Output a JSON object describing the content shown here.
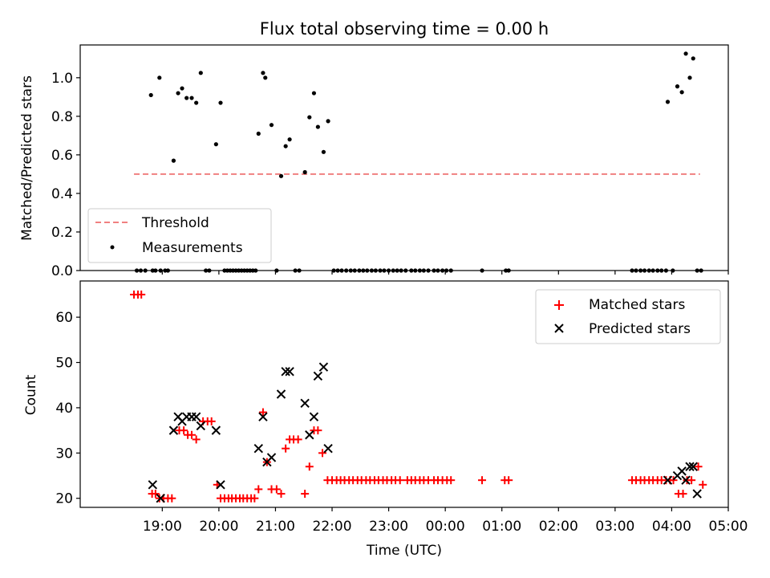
{
  "chart_data": [
    {
      "type": "scatter",
      "title": "Flux total observing time = 0.00 h",
      "xlabel": "",
      "ylabel": "Matched/Predicted stars",
      "ylim": [
        0,
        1.17
      ],
      "xlim": [
        17.55,
        29.0
      ],
      "yticks": [
        0.0,
        0.2,
        0.4,
        0.6,
        0.8,
        1.0
      ],
      "ytick_labels": [
        "0.0",
        "0.2",
        "0.4",
        "0.6",
        "0.8",
        "1.0"
      ],
      "legend_position": "lower-left",
      "threshold": {
        "name": "Threshold",
        "value": 0.5,
        "x_range": [
          18.5,
          28.5
        ],
        "color": "#f08080"
      },
      "series": [
        {
          "name": "Measurements",
          "color": "#000000",
          "marker": "dot",
          "x": [
            18.55,
            18.62,
            18.7,
            18.8,
            18.88,
            18.95,
            19.05,
            19.1,
            18.83,
            18.97,
            19.2,
            19.28,
            19.35,
            19.43,
            19.52,
            19.6,
            19.68,
            19.77,
            19.83,
            19.95,
            20.03,
            20.1,
            20.15,
            20.2,
            20.25,
            20.3,
            20.35,
            20.4,
            20.45,
            20.5,
            20.55,
            20.6,
            20.65,
            20.7,
            20.78,
            20.82,
            20.93,
            21.02,
            21.1,
            21.18,
            21.25,
            21.35,
            21.42,
            21.52,
            21.6,
            21.68,
            21.75,
            21.85,
            21.93,
            22.03,
            22.1,
            22.17,
            22.25,
            22.33,
            22.4,
            22.48,
            22.55,
            22.62,
            22.7,
            22.77,
            22.85,
            22.92,
            23.0,
            23.08,
            23.15,
            23.22,
            23.3,
            23.4,
            23.47,
            23.55,
            23.62,
            23.7,
            23.8,
            23.87,
            23.95,
            24.02,
            24.1,
            24.65,
            25.07,
            25.12,
            27.3,
            27.37,
            27.45,
            27.52,
            27.6,
            27.67,
            27.75,
            27.82,
            27.9,
            28.02,
            27.93,
            28.1,
            28.18,
            28.25,
            28.32,
            28.38,
            28.45,
            28.52
          ],
          "y": [
            0,
            0,
            0,
            0.91,
            0,
            1.0,
            0,
            0,
            0,
            0,
            0.57,
            0.92,
            0.945,
            0.895,
            0.895,
            0.87,
            1.025,
            0,
            0,
            0.655,
            0.87,
            0,
            0,
            0,
            0,
            0,
            0,
            0,
            0,
            0,
            0,
            0,
            0,
            0.71,
            1.025,
            1.0,
            0.755,
            0,
            0.49,
            0.645,
            0.68,
            0,
            0,
            0.51,
            0.795,
            0.92,
            0.745,
            0.615,
            0.775,
            0,
            0,
            0,
            0,
            0,
            0,
            0,
            0,
            0,
            0,
            0,
            0,
            0,
            0,
            0,
            0,
            0,
            0,
            0,
            0,
            0,
            0,
            0,
            0,
            0,
            0,
            0,
            0,
            0,
            0,
            0,
            0,
            0,
            0,
            0,
            0,
            0,
            0,
            0,
            0,
            0,
            0.875,
            0.955,
            0.925,
            1.125,
            1.0,
            1.1,
            0,
            0
          ]
        }
      ]
    },
    {
      "type": "scatter",
      "title": "",
      "xlabel": "Time (UTC)",
      "ylabel": "Count",
      "ylim": [
        18,
        68
      ],
      "xlim": [
        17.55,
        29.0
      ],
      "yticks": [
        20,
        30,
        40,
        50,
        60
      ],
      "ytick_labels": [
        "20",
        "30",
        "40",
        "50",
        "60"
      ],
      "xticks": [
        19,
        20,
        21,
        22,
        23,
        24,
        25,
        26,
        27,
        28,
        29
      ],
      "xtick_labels": [
        "19:00",
        "20:00",
        "21:00",
        "22:00",
        "23:00",
        "00:00",
        "01:00",
        "02:00",
        "03:00",
        "04:00",
        "05:00"
      ],
      "legend_position": "upper-right",
      "series": [
        {
          "name": "Matched stars",
          "color": "#ff0000",
          "marker": "plus",
          "x": [
            18.5,
            18.57,
            18.63,
            18.82,
            18.88,
            18.95,
            19.02,
            19.1,
            19.17,
            19.3,
            19.38,
            19.45,
            19.52,
            19.6,
            19.72,
            19.8,
            19.87,
            19.97,
            20.03,
            20.1,
            20.17,
            20.23,
            20.3,
            20.37,
            20.43,
            20.5,
            20.57,
            20.63,
            20.7,
            20.78,
            20.85,
            20.93,
            21.02,
            21.1,
            21.18,
            21.25,
            21.32,
            21.4,
            21.52,
            21.6,
            21.68,
            21.75,
            21.83,
            21.92,
            22.0,
            22.08,
            22.15,
            22.22,
            22.3,
            22.37,
            22.45,
            22.52,
            22.6,
            22.67,
            22.75,
            22.82,
            22.9,
            22.97,
            23.05,
            23.12,
            23.2,
            23.33,
            23.4,
            23.47,
            23.55,
            23.62,
            23.7,
            23.8,
            23.87,
            23.95,
            24.03,
            24.1,
            24.65,
            25.05,
            25.12,
            27.3,
            27.37,
            27.45,
            27.52,
            27.6,
            27.67,
            27.75,
            27.82,
            27.9,
            27.97,
            28.03,
            28.12,
            28.2,
            28.27,
            28.35,
            28.47,
            28.55
          ],
          "y": [
            65,
            65,
            65,
            21,
            21,
            20,
            20,
            20,
            20,
            35,
            35,
            34,
            34,
            33,
            37,
            37,
            37,
            23,
            20,
            20,
            20,
            20,
            20,
            20,
            20,
            20,
            20,
            20,
            22,
            39,
            28,
            22,
            22,
            21,
            31,
            33,
            33,
            33,
            21,
            27,
            35,
            35,
            30,
            24,
            24,
            24,
            24,
            24,
            24,
            24,
            24,
            24,
            24,
            24,
            24,
            24,
            24,
            24,
            24,
            24,
            24,
            24,
            24,
            24,
            24,
            24,
            24,
            24,
            24,
            24,
            24,
            24,
            24,
            24,
            24,
            24,
            24,
            24,
            24,
            24,
            24,
            24,
            24,
            24,
            24,
            24,
            21,
            21,
            24,
            24,
            27,
            23
          ]
        },
        {
          "name": "Predicted stars",
          "color": "#000000",
          "marker": "x",
          "x": [
            18.83,
            18.97,
            19.2,
            19.28,
            19.35,
            19.43,
            19.52,
            19.6,
            19.68,
            19.95,
            20.03,
            20.7,
            20.78,
            20.85,
            20.93,
            21.1,
            21.18,
            21.25,
            21.52,
            21.6,
            21.68,
            21.75,
            21.85,
            21.93,
            27.93,
            28.1,
            28.18,
            28.25,
            28.32,
            28.38,
            28.45
          ],
          "y": [
            23,
            20,
            35,
            38,
            37,
            38,
            38,
            38,
            36,
            35,
            23,
            31,
            38,
            28,
            29,
            43,
            48,
            48,
            41,
            34,
            38,
            47,
            49,
            31,
            24,
            25,
            26,
            24,
            27,
            27,
            21
          ]
        }
      ]
    }
  ]
}
